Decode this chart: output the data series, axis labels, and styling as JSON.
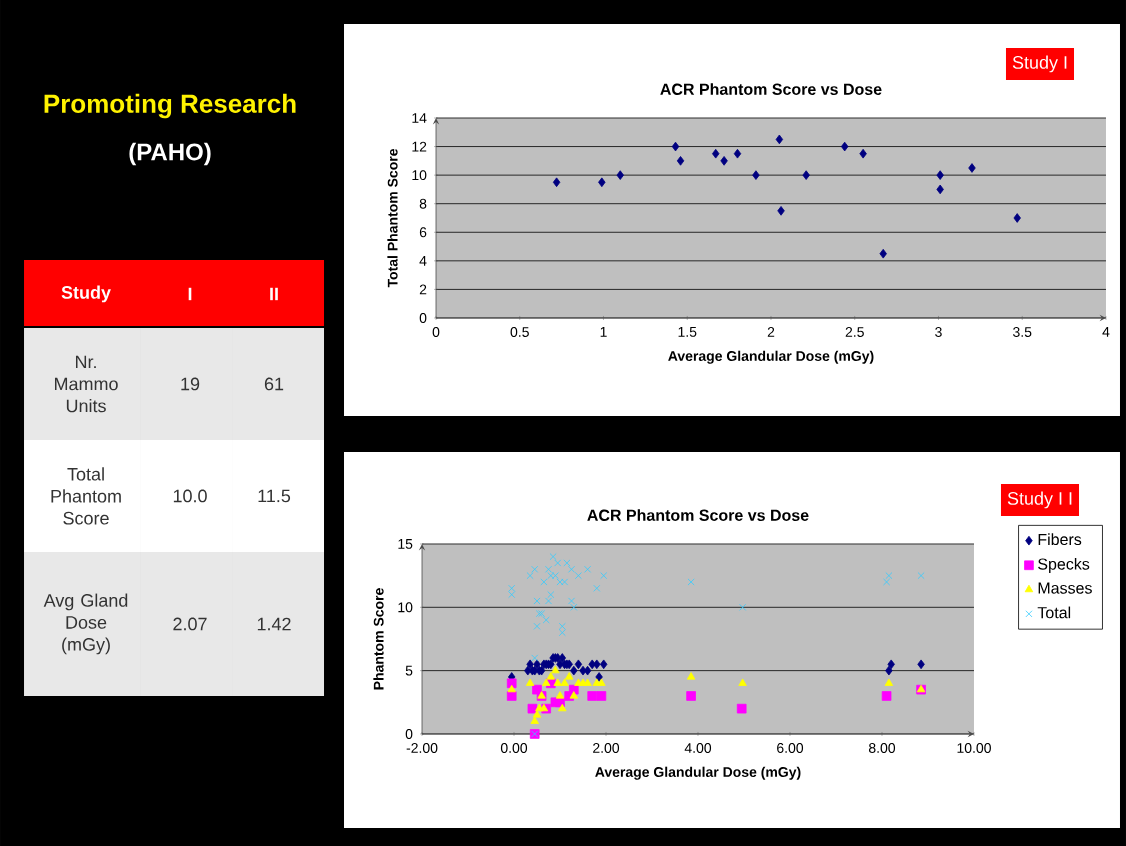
{
  "chart_data": [
    {
      "type": "other",
      "title": "Promoting Research",
      "subtitle": "(PAHO)",
      "legend_title": "Study",
      "categories": [
        "Nr. Mammo Units",
        "Total Phantom Score",
        "Avg Gland Dose (mGy)"
      ],
      "data_labels": true,
      "series": [
        {
          "name": "I",
          "colors": [
            "#e8e8e8",
            "#ffffff",
            "#e8e8e8"
          ],
          "values": [
            19,
            10.0,
            2.07
          ],
          "value_labels": [
            "19",
            "10.0",
            "2.07"
          ]
        },
        {
          "name": "II",
          "colors": [
            "#e8e8e8",
            "#ffffff",
            "#e8e8e8"
          ],
          "values": [
            61,
            11.5,
            1.42
          ],
          "value_labels": [
            "61",
            "11.5",
            "1.42"
          ]
        }
      ]
    },
    {
      "type": "scatter",
      "title": "ACR Phantom Score vs Dose",
      "xlabel": "Average Glandular Dose (mGy)",
      "ylabel": "Total Phantom Score",
      "annotations": [
        "Study I"
      ],
      "marker": "diamond",
      "grid": "y",
      "xlim": [
        0,
        4
      ],
      "xticks": [
        0,
        0.5,
        1,
        1.5,
        2,
        2.5,
        3,
        3.5,
        4
      ],
      "ylim": [
        0,
        14
      ],
      "yticks": [
        0,
        2,
        4,
        6,
        8,
        10,
        12,
        14
      ],
      "x": [
        0.72,
        0.99,
        1.1,
        1.43,
        1.46,
        1.67,
        1.72,
        1.8,
        1.91,
        2.05,
        2.06,
        2.21,
        2.44,
        2.55,
        2.67,
        3.01,
        3.01,
        3.2,
        3.47
      ],
      "series": [
        {
          "color": "#000080",
          "values": [
            9.5,
            9.5,
            10,
            12,
            11,
            11.5,
            11,
            11.5,
            10,
            12.5,
            7.5,
            10,
            12,
            11.5,
            4.5,
            9,
            10,
            10.5,
            7
          ]
        }
      ]
    },
    {
      "type": "scatter",
      "title": "ACR Phantom Score vs Dose",
      "xlabel": "Average Glandular Dose (mGy)",
      "ylabel": "Phantom Score",
      "annotations": [
        "Study I I"
      ],
      "grid": "y",
      "legend": "right",
      "xlim": [
        -2,
        10
      ],
      "xticks": [
        {
          "value": -2,
          "label": "-2.00"
        },
        {
          "value": 0,
          "label": "0.00"
        },
        {
          "value": 2,
          "label": "2.00"
        },
        {
          "value": 4,
          "label": "4.00"
        },
        {
          "value": 6,
          "label": "6.00"
        },
        {
          "value": 8,
          "label": "8.00"
        },
        {
          "value": 10,
          "label": "10.00"
        }
      ],
      "ylim": [
        0,
        15
      ],
      "yticks": [
        0,
        5,
        10,
        15
      ],
      "series": [
        {
          "name": "Fibers",
          "color": "#000080",
          "marker": "diamond",
          "x": [
            -0.05,
            0.3,
            0.35,
            0.4,
            0.45,
            0.5,
            0.55,
            0.6,
            0.65,
            0.7,
            0.75,
            0.8,
            0.85,
            0.9,
            0.95,
            1.0,
            1.05,
            1.1,
            1.15,
            1.2,
            1.3,
            1.4,
            1.5,
            1.6,
            1.7,
            1.8,
            1.85,
            1.95,
            8.15,
            8.2,
            8.85
          ],
          "values": [
            4.5,
            5,
            5.5,
            5,
            5,
            5.5,
            5,
            5,
            5.5,
            5.5,
            5.5,
            5.5,
            6,
            6,
            6,
            5.5,
            6,
            5.5,
            5.5,
            5.5,
            5,
            5.5,
            5,
            5,
            5.5,
            5.5,
            4.5,
            5.5,
            5,
            5.5,
            5.5
          ]
        },
        {
          "name": "Specks",
          "color": "#ff00ff",
          "marker": "square",
          "x": [
            -0.05,
            -0.05,
            0.4,
            0.45,
            0.5,
            0.6,
            0.7,
            0.8,
            0.9,
            1.0,
            1.1,
            1.2,
            1.3,
            1.5,
            1.7,
            1.8,
            1.9,
            3.85,
            4.95,
            8.1,
            8.85
          ],
          "values": [
            4,
            3,
            2,
            0,
            3.5,
            3,
            2,
            4,
            2.5,
            2.5,
            null,
            3,
            3.5,
            null,
            3,
            null,
            3,
            3,
            2,
            3,
            3.5
          ]
        },
        {
          "name": "Masses",
          "color": "#ffff00",
          "marker": "triangle",
          "x": [
            -0.05,
            0.35,
            0.45,
            0.5,
            0.55,
            0.6,
            0.65,
            0.7,
            0.8,
            0.9,
            0.95,
            1.0,
            1.05,
            1.1,
            1.2,
            1.3,
            1.4,
            1.5,
            1.6,
            1.8,
            1.9,
            3.85,
            4.97,
            8.15,
            8.85
          ],
          "values": [
            3.5,
            4,
            1,
            1.5,
            2,
            3,
            2,
            4,
            4.5,
            5,
            4,
            3,
            2,
            4,
            4.5,
            3,
            4,
            4,
            4,
            4,
            4,
            4.5,
            4,
            4,
            3.5
          ]
        },
        {
          "name": "Total",
          "color": "#33ccff",
          "marker": "cross",
          "x": [
            -0.05,
            -0.05,
            0.35,
            0.45,
            0.5,
            0.45,
            0.5,
            0.55,
            0.6,
            0.65,
            0.7,
            0.75,
            0.8,
            0.8,
            0.85,
            0.9,
            0.95,
            1.0,
            1.05,
            1.05,
            1.1,
            1.15,
            1.25,
            1.25,
            1.3,
            1.4,
            1.6,
            1.8,
            1.95,
            3.85,
            4.97,
            8.1,
            8.15,
            8.85,
            0.45,
            0.75
          ],
          "values": [
            11,
            11.5,
            12.5,
            13,
            10.5,
            6,
            8.5,
            9.5,
            9.5,
            12,
            9,
            13,
            12.5,
            11,
            14,
            12.5,
            13.5,
            12,
            8.5,
            8,
            12,
            13.5,
            13,
            10.5,
            10,
            12.5,
            13,
            11.5,
            12.5,
            12,
            10,
            12,
            12.5,
            12.5,
            0,
            10.5
          ]
        }
      ]
    }
  ]
}
